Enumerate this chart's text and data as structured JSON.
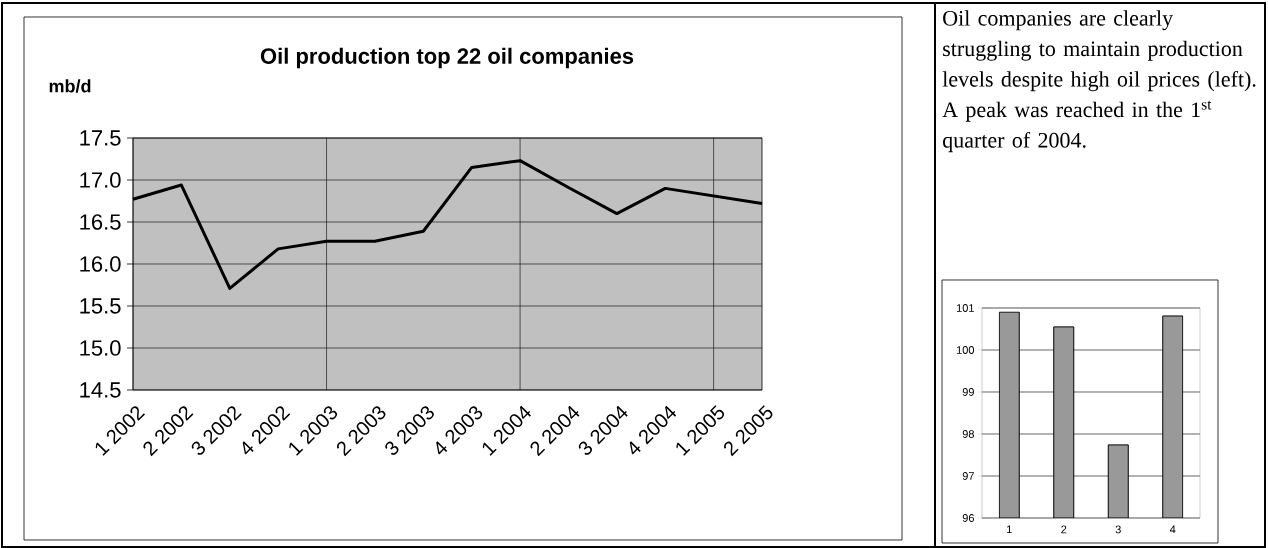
{
  "chart_data": [
    {
      "type": "line",
      "title": "Oil production top 22 oil companies",
      "ylabel": "mb/d",
      "categories": [
        "1 2002",
        "2 2002",
        "3 2002",
        "4 2002",
        "1 2003",
        "2 2003",
        "3 2003",
        "4 2003",
        "1 2004",
        "2 2004",
        "3 2004",
        "4 2004",
        "1 2005",
        "2 2005"
      ],
      "values": [
        16.77,
        16.94,
        15.71,
        16.18,
        16.27,
        16.27,
        16.39,
        17.15,
        17.23,
        16.91,
        16.6,
        16.9,
        16.81,
        16.72
      ],
      "color": "#000000",
      "ylim": [
        14.5,
        17.5
      ],
      "yticks": [
        14.5,
        15.5,
        16.5,
        17.5,
        {
          "value": 15.0,
          "label": "15.0"
        },
        {
          "value": 16.0,
          "label": "16.0"
        },
        {
          "value": 17.0,
          "label": "17.0"
        }
      ],
      "grid": true
    },
    {
      "type": "other",
      "annotations": [
        "Oil companies are clearly struggling to maintain production levels despite high oil prices (left). A peak was reached in  the 1$^{st}$ quarter of 2004."
      ]
    },
    {
      "type": "bar",
      "categories": [
        "1",
        "2",
        "3",
        "4"
      ],
      "values": [
        100.9,
        100.55,
        97.74,
        100.81
      ],
      "color": "#999999",
      "ylim": [
        96,
        101
      ],
      "yticks": [
        96,
        97,
        98,
        99,
        100,
        101
      ],
      "grid": "y"
    }
  ]
}
